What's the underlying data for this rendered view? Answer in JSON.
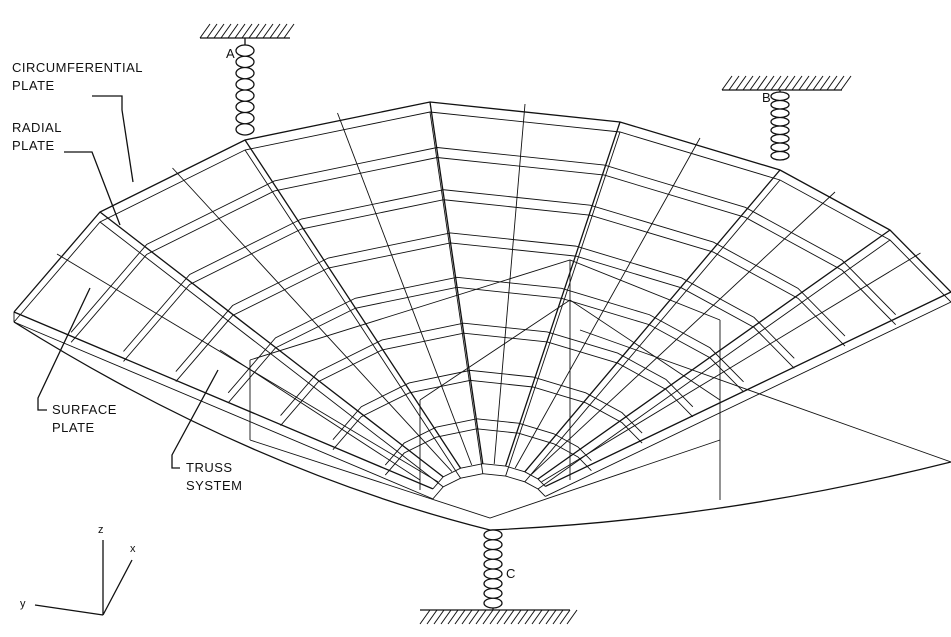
{
  "labels": [
    {
      "lines": [
        "CIRCUMFERENTIAL",
        "PLATE"
      ]
    },
    {
      "lines": [
        "RADIAL",
        "PLATE"
      ]
    },
    {
      "lines": [
        "SURFACE",
        "PLATE"
      ]
    },
    {
      "lines": [
        "TRUSS",
        "SYSTEM"
      ]
    }
  ],
  "springs": [
    "A",
    "B",
    "C"
  ],
  "axes": [
    "z",
    "x",
    "y"
  ]
}
